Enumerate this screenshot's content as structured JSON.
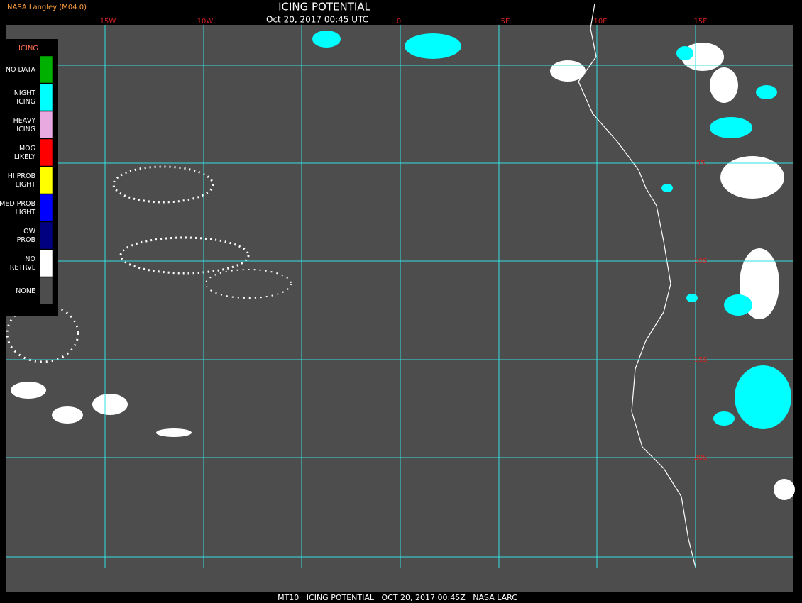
{
  "header": {
    "source": "NASA Langley (M04.0)",
    "title": "ICING POTENTIAL",
    "subtitle": "Oct 20, 2017 00:45 UTC"
  },
  "longitude_labels": [
    "15W",
    "10W",
    "0",
    "5E",
    "10E",
    "15E"
  ],
  "latitude_labels": [
    "5S",
    "10S",
    "15S",
    "20S"
  ],
  "legend": {
    "title": "ICING",
    "items": [
      {
        "lines": [
          "NO DATA"
        ],
        "color": "#00b000"
      },
      {
        "lines": [
          "NIGHT",
          "ICING"
        ],
        "color": "#00ffff"
      },
      {
        "lines": [
          "HEAVY",
          "ICING"
        ],
        "color": "#e8a8e0"
      },
      {
        "lines": [
          "MOG",
          "LIKELY"
        ],
        "color": "#ff0000"
      },
      {
        "lines": [
          "HI PROB",
          "LIGHT"
        ],
        "color": "#ffff00"
      },
      {
        "lines": [
          "MED PROB",
          "LIGHT"
        ],
        "color": "#0000ff"
      },
      {
        "lines": [
          "LOW",
          "PROB"
        ],
        "color": "#000080"
      },
      {
        "lines": [
          "NO",
          "RETRVL"
        ],
        "color": "#ffffff"
      },
      {
        "lines": [
          "NONE"
        ],
        "color": "#4d4d4d"
      }
    ]
  },
  "footer": "MT10   ICING POTENTIAL   OCT 20, 2017 00:45Z   NASA LARC"
}
